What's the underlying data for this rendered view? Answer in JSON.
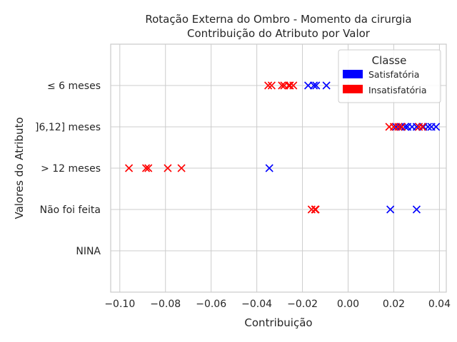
{
  "chart_data": {
    "type": "scatter",
    "title": "Rotação Externa do Ombro - Momento da cirurgia",
    "subtitle": "Contribuição do Atributo por Valor",
    "xlabel": "Contribuição",
    "ylabel": "Valores do Atributo",
    "xlim": [
      -0.104,
      0.043
    ],
    "xticks": [
      -0.1,
      -0.08,
      -0.06,
      -0.04,
      -0.02,
      0.0,
      0.02,
      0.04
    ],
    "xtick_labels": [
      "−0.10",
      "−0.08",
      "−0.06",
      "−0.04",
      "−0.02",
      "0.00",
      "0.02",
      "0.04"
    ],
    "categories": [
      "≤ 6 meses",
      "]6,12] meses",
      "> 12 meses",
      "Não foi feita",
      "NINA"
    ],
    "grid": true,
    "marker": "x",
    "legend": {
      "title": "Classe",
      "position": "top-right",
      "entries": [
        {
          "label": "Satisfatória",
          "color": "#0000ff"
        },
        {
          "label": "Insatisfatória",
          "color": "#ff0000"
        }
      ]
    },
    "series": [
      {
        "name": "Satisfatória",
        "color": "#0000ff",
        "points": [
          {
            "x": -0.0175,
            "y": "≤ 6 meses"
          },
          {
            "x": -0.015,
            "y": "≤ 6 meses"
          },
          {
            "x": -0.014,
            "y": "≤ 6 meses"
          },
          {
            "x": -0.0095,
            "y": "≤ 6 meses"
          },
          {
            "x": 0.021,
            "y": "]6,12] meses"
          },
          {
            "x": 0.023,
            "y": "]6,12] meses"
          },
          {
            "x": 0.025,
            "y": "]6,12] meses"
          },
          {
            "x": 0.026,
            "y": "]6,12] meses"
          },
          {
            "x": 0.028,
            "y": "]6,12] meses"
          },
          {
            "x": 0.03,
            "y": "]6,12] meses"
          },
          {
            "x": 0.033,
            "y": "]6,12] meses"
          },
          {
            "x": 0.035,
            "y": "]6,12] meses"
          },
          {
            "x": 0.0365,
            "y": "]6,12] meses"
          },
          {
            "x": 0.0385,
            "y": "]6,12] meses"
          },
          {
            "x": -0.0345,
            "y": "> 12 meses"
          },
          {
            "x": 0.0185,
            "y": "Não foi feita"
          },
          {
            "x": 0.03,
            "y": "Não foi feita"
          }
        ]
      },
      {
        "name": "Insatisfatória",
        "color": "#ff0000",
        "points": [
          {
            "x": -0.035,
            "y": "≤ 6 meses"
          },
          {
            "x": -0.0335,
            "y": "≤ 6 meses"
          },
          {
            "x": -0.029,
            "y": "≤ 6 meses"
          },
          {
            "x": -0.028,
            "y": "≤ 6 meses"
          },
          {
            "x": -0.026,
            "y": "≤ 6 meses"
          },
          {
            "x": -0.0255,
            "y": "≤ 6 meses"
          },
          {
            "x": -0.024,
            "y": "≤ 6 meses"
          },
          {
            "x": 0.018,
            "y": "]6,12] meses"
          },
          {
            "x": 0.02,
            "y": "]6,12] meses"
          },
          {
            "x": 0.022,
            "y": "]6,12] meses"
          },
          {
            "x": 0.0235,
            "y": "]6,12] meses"
          },
          {
            "x": 0.031,
            "y": "]6,12] meses"
          },
          {
            "x": 0.0325,
            "y": "]6,12] meses"
          },
          {
            "x": -0.096,
            "y": "> 12 meses"
          },
          {
            "x": -0.0885,
            "y": "> 12 meses"
          },
          {
            "x": -0.0875,
            "y": "> 12 meses"
          },
          {
            "x": -0.079,
            "y": "> 12 meses"
          },
          {
            "x": -0.073,
            "y": "> 12 meses"
          },
          {
            "x": -0.016,
            "y": "Não foi feita"
          },
          {
            "x": -0.0145,
            "y": "Não foi feita"
          },
          {
            "x": -0.0142,
            "y": "Não foi feita"
          }
        ]
      }
    ]
  }
}
